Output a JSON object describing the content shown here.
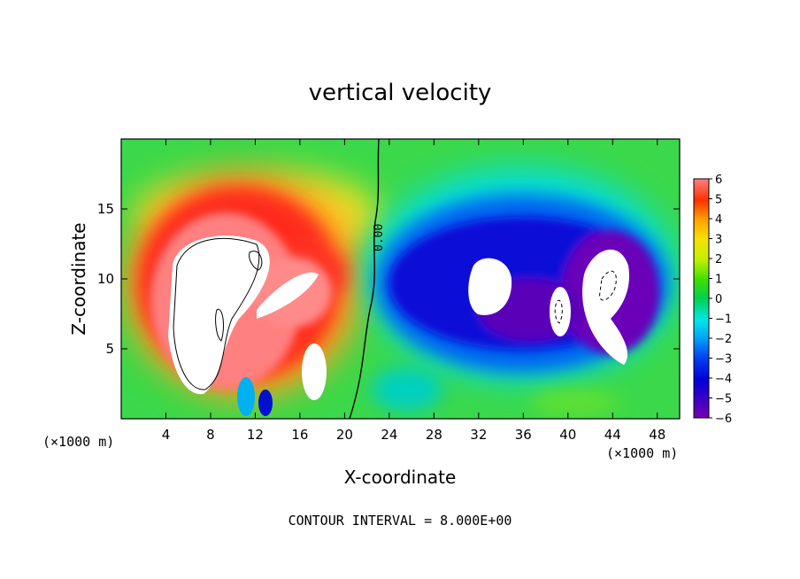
{
  "chart_data": {
    "type": "heatmap",
    "title": "vertical velocity",
    "xlabel": "X-coordinate",
    "ylabel": "Z-coordinate",
    "x_unit_label": "(×1000 m)",
    "x_unit_label_right": "(×1000 m)",
    "footer": "CONTOUR INTERVAL = 8.000E+00",
    "xlim": [
      0,
      50
    ],
    "ylim": [
      0,
      20
    ],
    "x_ticks": [
      4,
      8,
      12,
      16,
      20,
      24,
      28,
      32,
      36,
      40,
      44,
      48
    ],
    "x_tick_labels": [
      "4",
      "8",
      "12",
      "16",
      "20",
      "24",
      "28",
      "32",
      "36",
      "40",
      "44",
      "48"
    ],
    "y_ticks": [
      5,
      10,
      15
    ],
    "y_tick_labels": [
      "5",
      "10",
      "15"
    ],
    "contour_label": "0.00",
    "colorbar": {
      "range": [
        -6,
        6
      ],
      "tick_labels": [
        "6",
        "5",
        "4",
        "3",
        "2",
        "1",
        "0",
        "−1",
        "−2",
        "−3",
        "−4",
        "−5",
        "−6"
      ],
      "colors": [
        "#7a00b0",
        "#3a00c8",
        "#0000d8",
        "#0040f0",
        "#00a0f8",
        "#00e8e8",
        "#00d050",
        "#40e000",
        "#c0f000",
        "#f8e000",
        "#ffa000",
        "#ff3000",
        "#ff8080"
      ]
    },
    "updraft_region": {
      "x_range": [
        1,
        22
      ],
      "z_range": [
        0,
        16
      ],
      "max_value_shown": "> 6",
      "sign": "positive"
    },
    "downdraft_region": {
      "x_range": [
        22,
        50
      ],
      "z_range": [
        0,
        17
      ],
      "min_value_shown": "< -6",
      "sign": "negative"
    }
  }
}
